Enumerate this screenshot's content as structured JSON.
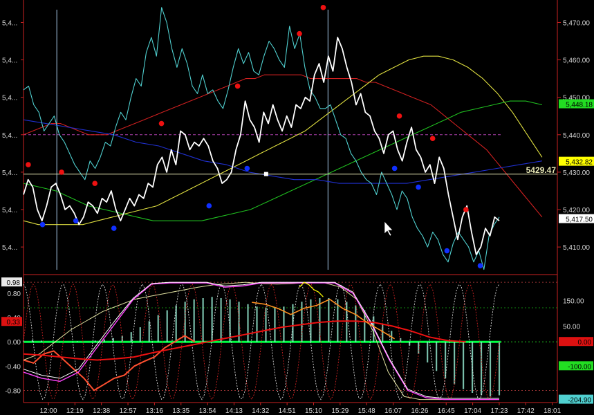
{
  "chart_data": [
    {
      "type": "line",
      "panel": "price",
      "left_axis_labels": [
        "5,4...",
        "5,4...",
        "5,4...",
        "5,4...",
        "5,4...",
        "5,4...",
        "5,4..."
      ],
      "yticks": [
        {
          "label": "5,470.00",
          "value": 5470
        },
        {
          "label": "5,460.00",
          "value": 5460
        },
        {
          "label": "5,450.00",
          "value": 5450
        },
        {
          "label": "5,440.00",
          "value": 5440
        },
        {
          "label": "5,430.00",
          "value": 5430
        },
        {
          "label": "5,420.00",
          "value": 5420
        },
        {
          "label": "5,410.00",
          "value": 5410
        }
      ],
      "ylim": [
        5403,
        5476
      ],
      "crosshair": {
        "label": "5429.47",
        "value": 5429.47,
        "color": "#e6e6b4"
      },
      "badges": [
        {
          "label": "5,448.18",
          "value": 5448.18,
          "bg": "#22dd22",
          "fg": "#000000"
        },
        {
          "label": "5,432.82",
          "value": 5432.82,
          "bg": "#ffff00",
          "fg": "#000000"
        },
        {
          "label": "5,417.50",
          "value": 5417.5,
          "bg": "#ffffff",
          "fg": "#000000"
        }
      ],
      "dashed_level": {
        "value": 5440,
        "color": "#b040b0"
      },
      "vertical_lines_t": [
        0.07,
        0.64
      ],
      "series": [
        {
          "color": "#ffffff",
          "width": 1.8,
          "values": [
            5424,
            5428,
            5426,
            5420,
            5417,
            5421,
            5426,
            5427,
            5424,
            5420,
            5421,
            5419,
            5416,
            5418,
            5422,
            5421,
            5419,
            5423,
            5422,
            5425,
            5420,
            5417,
            5420,
            5423,
            5421,
            5424,
            5423,
            5427,
            5426,
            5432,
            5434,
            5430,
            5436,
            5432,
            5441,
            5440,
            5436,
            5438,
            5437,
            5439,
            5437,
            5433,
            5431,
            5427,
            5428,
            5430,
            5436,
            5440,
            5449,
            5444,
            5442,
            5438,
            5446,
            5443,
            5448,
            5444,
            5441,
            5445,
            5442,
            5448,
            5447,
            5450,
            5449,
            5456,
            5459,
            5454,
            5461,
            5457,
            5466,
            5463,
            5458,
            5454,
            5448,
            5451,
            5446,
            5445,
            5441,
            5439,
            5435,
            5440,
            5441,
            5436,
            5433,
            5438,
            5442,
            5436,
            5434,
            5430,
            5432,
            5427,
            5434,
            5431,
            5424,
            5418,
            5412,
            5418,
            5421,
            5414,
            5408,
            5410,
            5415,
            5413,
            5418,
            5417
          ]
        },
        {
          "color": "#50d0d0",
          "width": 1.1,
          "values": [
            5452,
            5453,
            5448,
            5446,
            5441,
            5443,
            5445,
            5440,
            5438,
            5435,
            5432,
            5430,
            5428,
            5433,
            5431,
            5434,
            5438,
            5437,
            5442,
            5446,
            5444,
            5450,
            5455,
            5453,
            5462,
            5466,
            5461,
            5474,
            5470,
            5463,
            5458,
            5463,
            5459,
            5453,
            5451,
            5456,
            5451,
            5452,
            5449,
            5447,
            5452,
            5458,
            5463,
            5459,
            5462,
            5457,
            5456,
            5461,
            5465,
            5463,
            5460,
            5458,
            5469,
            5463,
            5467,
            5458,
            5452,
            5450,
            5447,
            5447,
            5448,
            5444,
            5440,
            5439,
            5435,
            5433,
            5430,
            5428,
            5427,
            5424,
            5430,
            5427,
            5424,
            5420,
            5425,
            5423,
            5418,
            5415,
            5413,
            5410,
            5414,
            5412,
            5408,
            5406,
            5411,
            5414,
            5412,
            5410,
            5406,
            5409,
            5404,
            5413,
            5416,
            5418
          ]
        },
        {
          "color": "#d02020",
          "width": 1.1,
          "values": [
            5440,
            5441,
            5442,
            5443,
            5443,
            5442,
            5441,
            5440,
            5440,
            5440,
            5441,
            5442,
            5443,
            5444,
            5445,
            5446,
            5447,
            5448,
            5449,
            5450,
            5451,
            5452,
            5453,
            5454,
            5455,
            5455,
            5456,
            5456,
            5456,
            5456,
            5456,
            5455,
            5455,
            5455,
            5455,
            5455,
            5455,
            5454,
            5454,
            5453,
            5452,
            5451,
            5450,
            5449,
            5448,
            5446,
            5444,
            5442,
            5440,
            5438,
            5436,
            5433,
            5430,
            5427,
            5424,
            5421,
            5418
          ]
        },
        {
          "color": "#e0e040",
          "width": 1.1,
          "values": [
            5417,
            5416,
            5416,
            5416,
            5416,
            5417,
            5418,
            5419,
            5420,
            5421,
            5423,
            5425,
            5427,
            5429,
            5431,
            5433,
            5435,
            5437,
            5439,
            5441,
            5444,
            5447,
            5450,
            5453,
            5456,
            5458,
            5460,
            5461,
            5461,
            5460,
            5458,
            5455,
            5451,
            5446,
            5440,
            5434
          ]
        },
        {
          "color": "#20c020",
          "width": 1.1,
          "values": [
            5427,
            5426,
            5425,
            5423,
            5421,
            5420,
            5419,
            5418,
            5417,
            5417,
            5417,
            5417,
            5418,
            5419,
            5420,
            5422,
            5424,
            5426,
            5428,
            5430,
            5432,
            5434,
            5436,
            5438,
            5440,
            5442,
            5444,
            5446,
            5447,
            5448,
            5449,
            5449,
            5448
          ]
        },
        {
          "color": "#2030d0",
          "width": 1.1,
          "values": [
            5444,
            5443,
            5442,
            5441,
            5440,
            5438,
            5437,
            5435,
            5433,
            5432,
            5430,
            5429,
            5428,
            5428,
            5427,
            5427,
            5427,
            5427,
            5428,
            5429,
            5430,
            5431,
            5432,
            5433
          ]
        }
      ],
      "red_dots": [
        [
          0.01,
          5432
        ],
        [
          0.08,
          5430
        ],
        [
          0.15,
          5427
        ],
        [
          0.29,
          5443
        ],
        [
          0.45,
          5453
        ],
        [
          0.58,
          5467
        ],
        [
          0.63,
          5474
        ],
        [
          0.79,
          5445
        ],
        [
          0.86,
          5439
        ],
        [
          0.93,
          5420
        ]
      ],
      "blue_dots": [
        [
          0.04,
          5416
        ],
        [
          0.11,
          5417
        ],
        [
          0.19,
          5415
        ],
        [
          0.39,
          5421
        ],
        [
          0.47,
          5431
        ],
        [
          0.78,
          5431
        ],
        [
          0.83,
          5426
        ],
        [
          0.89,
          5409
        ],
        [
          0.96,
          5405
        ]
      ],
      "white_square": [
        0.51,
        5429.5
      ]
    },
    {
      "type": "line",
      "panel": "oscillator",
      "left_axis_labels": [
        "0.98",
        "0.80",
        "0.40",
        "0.33",
        "0.00",
        "-0.40",
        "-0.80"
      ],
      "right_axis_labels": [
        "150.00",
        "50.00",
        "-204.90"
      ],
      "badges": [
        {
          "label": "0.98",
          "side": "left",
          "value": 0.98,
          "bg": "#e8e8e8",
          "fg": "#000000"
        },
        {
          "label": "0.33",
          "side": "left",
          "value": 0.33,
          "bg": "#dd1111",
          "fg": "#000000"
        },
        {
          "label": "0.00",
          "side": "right",
          "value": 0.0,
          "bg": "#dd1111",
          "fg": "#000000"
        },
        {
          "label": "-100.00",
          "side": "right",
          "value": -0.4,
          "bg": "#22dd22",
          "fg": "#000000"
        },
        {
          "label": "-204.90",
          "side": "right",
          "value": -0.95,
          "bg": "#50d0d0",
          "fg": "#000000"
        }
      ],
      "ylim": [
        -1.0,
        1.05
      ],
      "histogram": [
        0.02,
        0.03,
        0.02,
        0.0,
        -0.01,
        0.0,
        0.01,
        0.0,
        0.02,
        0.04,
        0.06,
        0.1,
        0.16,
        0.24,
        0.34,
        0.44,
        0.52,
        0.6,
        0.66,
        0.7,
        0.72,
        0.74,
        0.72,
        0.7,
        0.66,
        0.62,
        0.58,
        0.56,
        0.56,
        0.58,
        0.62,
        0.66,
        0.7,
        0.72,
        0.72,
        0.7,
        0.66,
        0.6,
        0.52,
        0.42,
        0.3,
        0.18,
        0.06,
        -0.06,
        -0.2,
        -0.34,
        -0.48,
        -0.6,
        -0.7,
        -0.78,
        -0.84,
        -0.88,
        -0.9,
        -0.88
      ],
      "series": [
        {
          "color": "#ff5030",
          "width": 2.0,
          "values": [
            -0.3,
            -0.35,
            -0.2,
            -0.15,
            -0.3,
            -0.45,
            -0.6,
            -0.8,
            -0.7,
            -0.6,
            -0.55,
            -0.4,
            -0.32,
            -0.25,
            -0.1,
            0.0,
            0.1,
            0.0
          ]
        },
        {
          "color": "#e0e0a0",
          "width": 1.0,
          "values": [
            -0.3,
            -0.2,
            0.0,
            0.2,
            0.35,
            0.5,
            0.6,
            0.7,
            0.75,
            0.8,
            0.85,
            0.9,
            0.94,
            0.96,
            0.98,
            0.96,
            0.95,
            0.96,
            0.98,
            0.97,
            0.9,
            0.7,
            0.2,
            -0.5,
            -0.9,
            -0.95,
            -0.95,
            -0.95,
            -0.95,
            -0.95,
            -0.95
          ]
        },
        {
          "color": "#ff44ff",
          "width": 1.4,
          "values": [
            -0.5,
            -0.6,
            -0.65,
            -0.5,
            -0.1,
            0.3,
            0.7,
            0.95,
            0.97,
            0.97,
            0.97,
            0.9,
            0.92,
            0.97,
            0.97,
            0.97,
            0.97,
            0.97,
            0.8,
            0.3,
            -0.3,
            -0.8,
            -0.92,
            -0.95,
            -0.95,
            -0.95,
            -0.95
          ]
        },
        {
          "color": "#ffffff",
          "width": 1.0,
          "values": [
            -0.45,
            -0.55,
            -0.6,
            -0.45,
            -0.05,
            0.35,
            0.72,
            0.96,
            0.98,
            0.98,
            0.98,
            0.92,
            0.94,
            0.98,
            0.98,
            0.98,
            0.98,
            0.98,
            0.82,
            0.32,
            -0.28,
            -0.78,
            -0.9,
            -0.93,
            -0.93,
            -0.93,
            -0.93
          ]
        },
        {
          "color": "#ee1111",
          "width": 2.0,
          "values": [
            -0.2,
            -0.22,
            -0.25,
            -0.28,
            -0.3,
            -0.28,
            -0.25,
            -0.18,
            -0.12,
            -0.06,
            0.0,
            0.06,
            0.12,
            0.18,
            0.24,
            0.28,
            0.32,
            0.34,
            0.34,
            0.32,
            0.26,
            0.18,
            0.08,
            0.02,
            0.0
          ]
        },
        {
          "color": "#ff9020",
          "width": 1.6,
          "values": [
            0.65,
            0.62,
            0.55,
            0.45,
            0.55,
            0.6,
            0.7,
            0.55,
            0.45,
            0.3,
            0.18,
            0.05
          ]
        },
        {
          "color": "#ffff00",
          "width": 1.2,
          "values": [
            0.9,
            0.98,
            0.94,
            0.86,
            0.82,
            0.74
          ]
        }
      ],
      "dotted_levels": [
        0.98,
        0.56,
        0.0,
        -0.8
      ],
      "x_labels": [
        "12:00",
        "12:19",
        "12:38",
        "12:57",
        "13:16",
        "13:35",
        "13:54",
        "14:13",
        "14:32",
        "14:51",
        "15:10",
        "15:29",
        "15:48",
        "16:07",
        "16:26",
        "16:45",
        "17:04",
        "17:23",
        "17:42",
        "18:01"
      ]
    }
  ]
}
